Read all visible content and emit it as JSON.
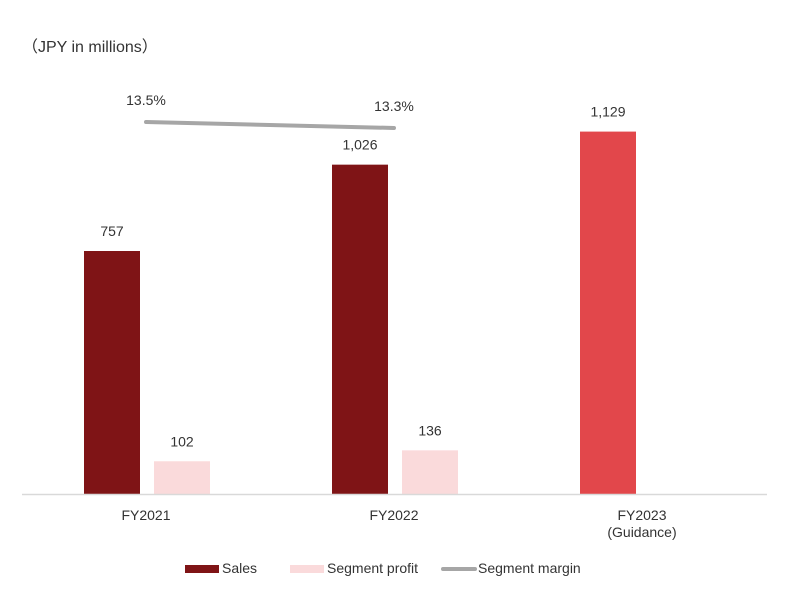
{
  "chart_data": {
    "type": "bar",
    "unit_label": "（JPY in millions）",
    "categories": [
      [
        "FY2021"
      ],
      [
        "FY2022"
      ],
      [
        "FY2023",
        "(Guidance)"
      ]
    ],
    "series": [
      {
        "name": "Sales",
        "type": "bar",
        "values": [
          757,
          1026,
          1129
        ],
        "labels": [
          "757",
          "1,026",
          "1,129"
        ],
        "color": "#7f1416",
        "highlight_color": "#e2474b"
      },
      {
        "name": "Segment profit",
        "type": "bar",
        "values": [
          102,
          136,
          null
        ],
        "labels": [
          "102",
          "136",
          ""
        ],
        "color": "#fadadb"
      },
      {
        "name": "Segment margin",
        "type": "line",
        "values": [
          13.5,
          13.3,
          null
        ],
        "labels": [
          "13.5%",
          "13.3%",
          ""
        ],
        "unit": "%",
        "color": "#a6a6a6"
      }
    ],
    "legend": {
      "placement": "bottom"
    },
    "grid": false
  }
}
